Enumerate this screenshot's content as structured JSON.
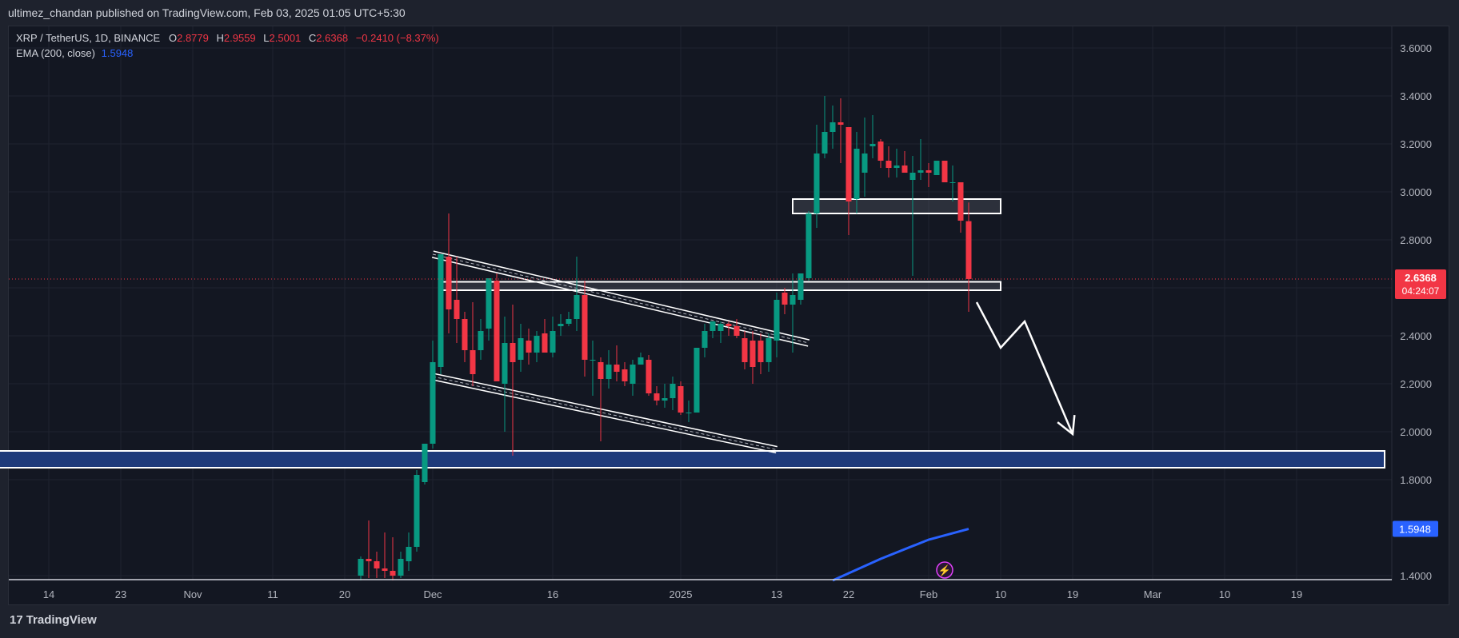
{
  "header": {
    "published_text": "ultimez_chandan published on TradingView.com, Feb 03, 2025 01:05 UTC+5:30"
  },
  "legend": {
    "symbol": "XRP / TetherUS, 1D, BINANCE",
    "o_label": "O",
    "o_value": "2.8779",
    "h_label": "H",
    "h_value": "2.9559",
    "l_label": "L",
    "l_value": "2.5001",
    "c_label": "C",
    "c_value": "2.6368",
    "change": "−0.2410 (−8.37%)",
    "ema_label": "EMA (200, close)",
    "ema_value": "1.5948"
  },
  "price_tag": {
    "price": "2.6368",
    "countdown": "04:24:07"
  },
  "ema_tag": "1.5948",
  "footer": {
    "logo": "17",
    "brand": "TradingView"
  },
  "colors": {
    "up": "#089981",
    "down": "#f23645",
    "ema": "#2962ff",
    "background": "#131722",
    "zone": "#1e3a7a"
  },
  "chart_data": {
    "type": "candlestick",
    "title": "XRP / TetherUS, 1D, BINANCE",
    "y_ticks": [
      "3.6000",
      "3.4000",
      "3.2000",
      "3.0000",
      "2.8000",
      "2.6000",
      "2.4000",
      "2.2000",
      "2.0000",
      "1.8000",
      "1.4000"
    ],
    "y_tick_values": [
      3.6,
      3.4,
      3.2,
      3.0,
      2.8,
      2.6,
      2.4,
      2.2,
      2.0,
      1.8,
      1.4
    ],
    "ylim": [
      1.38,
      3.65
    ],
    "x_ticks": [
      "14",
      "23",
      "Nov",
      "11",
      "20",
      "Dec",
      "16",
      "2025",
      "13",
      "22",
      "Feb",
      "10",
      "19",
      "Mar",
      "10",
      "19"
    ],
    "x_tick_dates": [
      "2024-10-14",
      "2024-10-23",
      "2024-11-01",
      "2024-11-11",
      "2024-11-20",
      "2024-12-01",
      "2024-12-16",
      "2025-01-01",
      "2025-01-13",
      "2025-01-22",
      "2025-02-01",
      "2025-02-10",
      "2025-02-19",
      "2025-03-01",
      "2025-03-10",
      "2025-03-19"
    ],
    "candles": [
      {
        "date": "2024-11-22",
        "o": 1.4,
        "h": 1.48,
        "l": 1.38,
        "c": 1.47
      },
      {
        "date": "2024-11-23",
        "o": 1.47,
        "h": 1.63,
        "l": 1.39,
        "c": 1.46
      },
      {
        "date": "2024-11-24",
        "o": 1.46,
        "h": 1.5,
        "l": 1.39,
        "c": 1.43
      },
      {
        "date": "2024-11-25",
        "o": 1.43,
        "h": 1.58,
        "l": 1.39,
        "c": 1.42
      },
      {
        "date": "2024-11-26",
        "o": 1.42,
        "h": 1.56,
        "l": 1.38,
        "c": 1.4
      },
      {
        "date": "2024-11-27",
        "o": 1.4,
        "h": 1.5,
        "l": 1.39,
        "c": 1.47
      },
      {
        "date": "2024-11-28",
        "o": 1.46,
        "h": 1.58,
        "l": 1.42,
        "c": 1.52
      },
      {
        "date": "2024-11-29",
        "o": 1.52,
        "h": 1.84,
        "l": 1.5,
        "c": 1.82
      },
      {
        "date": "2024-11-30",
        "o": 1.79,
        "h": 1.95,
        "l": 1.78,
        "c": 1.95
      },
      {
        "date": "2024-12-01",
        "o": 1.95,
        "h": 2.38,
        "l": 1.93,
        "c": 2.29
      },
      {
        "date": "2024-12-02",
        "o": 2.27,
        "h": 2.74,
        "l": 2.24,
        "c": 2.74
      },
      {
        "date": "2024-12-03",
        "o": 2.73,
        "h": 2.91,
        "l": 2.41,
        "c": 2.51
      },
      {
        "date": "2024-12-04",
        "o": 2.55,
        "h": 2.73,
        "l": 2.37,
        "c": 2.47
      },
      {
        "date": "2024-12-05",
        "o": 2.47,
        "h": 2.5,
        "l": 2.29,
        "c": 2.34
      },
      {
        "date": "2024-12-06",
        "o": 2.34,
        "h": 2.54,
        "l": 2.19,
        "c": 2.24
      },
      {
        "date": "2024-12-07",
        "o": 2.34,
        "h": 2.47,
        "l": 2.3,
        "c": 2.42
      },
      {
        "date": "2024-12-08",
        "o": 2.43,
        "h": 2.64,
        "l": 2.38,
        "c": 2.64
      },
      {
        "date": "2024-12-09",
        "o": 2.63,
        "h": 2.66,
        "l": 2.21,
        "c": 2.21
      },
      {
        "date": "2024-12-10",
        "o": 2.2,
        "h": 2.48,
        "l": 2.0,
        "c": 2.37
      },
      {
        "date": "2024-12-11",
        "o": 2.37,
        "h": 2.53,
        "l": 1.9,
        "c": 2.29
      },
      {
        "date": "2024-12-12",
        "o": 2.3,
        "h": 2.45,
        "l": 2.25,
        "c": 2.39
      },
      {
        "date": "2024-12-13",
        "o": 2.38,
        "h": 2.43,
        "l": 2.28,
        "c": 2.33
      },
      {
        "date": "2024-12-14",
        "o": 2.33,
        "h": 2.42,
        "l": 2.29,
        "c": 2.4
      },
      {
        "date": "2024-12-15",
        "o": 2.41,
        "h": 2.47,
        "l": 2.33,
        "c": 2.33
      },
      {
        "date": "2024-12-16",
        "o": 2.33,
        "h": 2.48,
        "l": 2.31,
        "c": 2.42
      },
      {
        "date": "2024-12-17",
        "o": 2.44,
        "h": 2.49,
        "l": 2.4,
        "c": 2.45
      },
      {
        "date": "2024-12-18",
        "o": 2.45,
        "h": 2.5,
        "l": 2.44,
        "c": 2.47
      },
      {
        "date": "2024-12-19",
        "o": 2.47,
        "h": 2.73,
        "l": 2.42,
        "c": 2.57
      },
      {
        "date": "2024-12-20",
        "o": 2.57,
        "h": 2.63,
        "l": 2.23,
        "c": 2.3
      },
      {
        "date": "2024-12-21",
        "o": 2.3,
        "h": 2.38,
        "l": 2.15,
        "c": 2.3
      },
      {
        "date": "2024-12-22",
        "o": 2.29,
        "h": 2.31,
        "l": 1.96,
        "c": 2.22
      },
      {
        "date": "2024-12-23",
        "o": 2.22,
        "h": 2.34,
        "l": 2.18,
        "c": 2.28
      },
      {
        "date": "2024-12-24",
        "o": 2.28,
        "h": 2.36,
        "l": 2.21,
        "c": 2.25
      },
      {
        "date": "2024-12-25",
        "o": 2.26,
        "h": 2.29,
        "l": 2.19,
        "c": 2.21
      },
      {
        "date": "2024-12-26",
        "o": 2.2,
        "h": 2.3,
        "l": 2.15,
        "c": 2.28
      },
      {
        "date": "2024-12-27",
        "o": 2.28,
        "h": 2.33,
        "l": 2.28,
        "c": 2.31
      },
      {
        "date": "2024-12-28",
        "o": 2.3,
        "h": 2.32,
        "l": 2.15,
        "c": 2.16
      },
      {
        "date": "2024-12-29",
        "o": 2.16,
        "h": 2.19,
        "l": 2.11,
        "c": 2.13
      },
      {
        "date": "2024-12-30",
        "o": 2.13,
        "h": 2.2,
        "l": 2.1,
        "c": 2.14
      },
      {
        "date": "2024-12-31",
        "o": 2.14,
        "h": 2.23,
        "l": 2.09,
        "c": 2.2
      },
      {
        "date": "2025-01-01",
        "o": 2.19,
        "h": 2.21,
        "l": 2.07,
        "c": 2.08
      },
      {
        "date": "2025-01-02",
        "o": 2.08,
        "h": 2.13,
        "l": 2.04,
        "c": 2.08
      },
      {
        "date": "2025-01-03",
        "o": 2.08,
        "h": 2.35,
        "l": 2.08,
        "c": 2.35
      },
      {
        "date": "2025-01-04",
        "o": 2.35,
        "h": 2.45,
        "l": 2.31,
        "c": 2.42
      },
      {
        "date": "2025-01-05",
        "o": 2.42,
        "h": 2.46,
        "l": 2.39,
        "c": 2.46
      },
      {
        "date": "2025-01-06",
        "o": 2.42,
        "h": 2.46,
        "l": 2.37,
        "c": 2.45
      },
      {
        "date": "2025-01-07",
        "o": 2.45,
        "h": 2.46,
        "l": 2.4,
        "c": 2.44
      },
      {
        "date": "2025-01-08",
        "o": 2.44,
        "h": 2.47,
        "l": 2.39,
        "c": 2.4
      },
      {
        "date": "2025-01-09",
        "o": 2.39,
        "h": 2.42,
        "l": 2.26,
        "c": 2.29
      },
      {
        "date": "2025-01-10",
        "o": 2.38,
        "h": 2.42,
        "l": 2.2,
        "c": 2.27
      },
      {
        "date": "2025-01-11",
        "o": 2.38,
        "h": 2.41,
        "l": 2.24,
        "c": 2.29
      },
      {
        "date": "2025-01-12",
        "o": 2.29,
        "h": 2.41,
        "l": 2.25,
        "c": 2.39
      },
      {
        "date": "2025-01-13",
        "o": 2.38,
        "h": 2.58,
        "l": 2.31,
        "c": 2.55
      },
      {
        "date": "2025-01-14",
        "o": 2.58,
        "h": 2.6,
        "l": 2.49,
        "c": 2.53
      },
      {
        "date": "2025-01-15",
        "o": 2.53,
        "h": 2.66,
        "l": 2.33,
        "c": 2.57
      },
      {
        "date": "2025-01-16",
        "o": 2.55,
        "h": 2.66,
        "l": 2.53,
        "c": 2.66
      },
      {
        "date": "2025-01-17",
        "o": 2.64,
        "h": 2.92,
        "l": 2.63,
        "c": 2.91
      },
      {
        "date": "2025-01-18",
        "o": 2.91,
        "h": 3.28,
        "l": 2.85,
        "c": 3.16
      },
      {
        "date": "2025-01-19",
        "o": 3.16,
        "h": 3.4,
        "l": 3.14,
        "c": 3.25
      },
      {
        "date": "2025-01-20",
        "o": 3.25,
        "h": 3.36,
        "l": 3.18,
        "c": 3.29
      },
      {
        "date": "2025-01-21",
        "o": 3.29,
        "h": 3.39,
        "l": 3.12,
        "c": 3.28
      },
      {
        "date": "2025-01-22",
        "o": 3.27,
        "h": 3.27,
        "l": 2.82,
        "c": 2.96
      },
      {
        "date": "2025-01-23",
        "o": 2.97,
        "h": 3.25,
        "l": 2.91,
        "c": 3.18
      },
      {
        "date": "2025-01-24",
        "o": 3.08,
        "h": 3.31,
        "l": 2.98,
        "c": 3.16
      },
      {
        "date": "2025-01-25",
        "o": 3.19,
        "h": 3.32,
        "l": 3.14,
        "c": 3.2
      },
      {
        "date": "2025-01-26",
        "o": 3.21,
        "h": 3.22,
        "l": 3.1,
        "c": 3.13
      },
      {
        "date": "2025-01-27",
        "o": 3.13,
        "h": 3.19,
        "l": 3.06,
        "c": 3.1
      },
      {
        "date": "2025-01-28",
        "o": 3.1,
        "h": 3.18,
        "l": 3.06,
        "c": 3.11
      },
      {
        "date": "2025-01-29",
        "o": 3.11,
        "h": 3.17,
        "l": 3.08,
        "c": 3.08
      },
      {
        "date": "2025-01-30",
        "o": 3.05,
        "h": 3.15,
        "l": 2.65,
        "c": 3.08
      },
      {
        "date": "2025-01-31",
        "o": 3.08,
        "h": 3.22,
        "l": 3.05,
        "c": 3.09
      },
      {
        "date": "2025-02-01",
        "o": 3.09,
        "h": 3.12,
        "l": 3.02,
        "c": 3.08
      },
      {
        "date": "2025-02-02",
        "o": 3.07,
        "h": 3.13,
        "l": 3.07,
        "c": 3.13
      },
      {
        "date": "2025-02-03",
        "o": 3.13,
        "h": 3.13,
        "l": 3.05,
        "c": 3.04
      },
      {
        "date": "2025-02-04",
        "o": 3.04,
        "h": 3.11,
        "l": 2.96,
        "c": 3.04
      },
      {
        "date": "2025-02-05",
        "o": 3.04,
        "h": 3.04,
        "l": 2.83,
        "c": 2.88
      },
      {
        "date": "2025-02-06",
        "o": 2.8779,
        "h": 2.9559,
        "l": 2.5001,
        "c": 2.6368
      }
    ],
    "ema": {
      "name": "EMA (200, close)",
      "points": [
        {
          "date": "2025-01-20",
          "v": 1.38
        },
        {
          "date": "2025-01-26",
          "v": 1.47
        },
        {
          "date": "2025-02-01",
          "v": 1.55
        },
        {
          "date": "2025-02-06",
          "v": 1.5948
        }
      ]
    },
    "zones": [
      {
        "kind": "support-zone",
        "y1": 1.85,
        "y2": 1.92,
        "from": "2024-10-05",
        "to": "2025-03-30"
      },
      {
        "kind": "resistance-box",
        "y1": 2.91,
        "y2": 2.97,
        "from": "2025-01-15",
        "to": "2025-02-10"
      },
      {
        "kind": "breakdown-box",
        "y1": 2.59,
        "y2": 2.625,
        "from": "2024-12-02",
        "to": "2025-02-10"
      }
    ],
    "channel": [
      {
        "from": {
          "date": "2024-12-01",
          "v": 2.74
        },
        "to": {
          "date": "2025-01-17",
          "v": 2.37
        }
      },
      {
        "from": {
          "date": "2024-12-01",
          "v": 2.23
        },
        "to": {
          "date": "2025-01-13",
          "v": 1.925
        }
      }
    ],
    "projection": [
      {
        "date": "2025-02-07",
        "v": 2.54
      },
      {
        "date": "2025-02-10",
        "v": 2.35
      },
      {
        "date": "2025-02-13",
        "v": 2.46
      },
      {
        "date": "2025-02-19",
        "v": 1.99
      }
    ],
    "last_price": 2.6368
  }
}
